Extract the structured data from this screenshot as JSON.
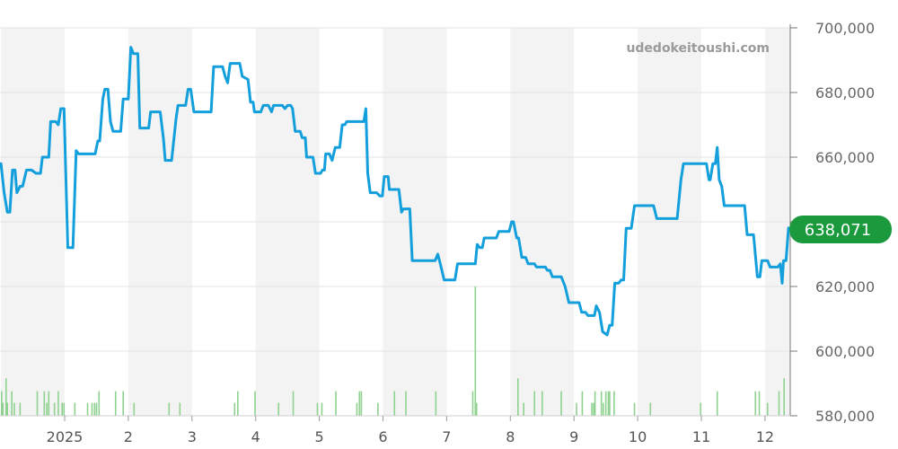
{
  "watermark": "udedokeitoushi.com",
  "current_value_label": "638,071",
  "colors": {
    "line": "#139fdb",
    "volume": "#8fd18f",
    "badge": "#1a9a3c",
    "band": "#f3f3f3",
    "grid": "#e3e3e3"
  },
  "chart_data": {
    "type": "line",
    "title": "",
    "xlabel": "",
    "ylabel": "",
    "ylim": [
      580000,
      700000
    ],
    "xlim": [
      -1.0,
      11.4
    ],
    "y_ticks": [
      {
        "value": 700000,
        "label": "700,000"
      },
      {
        "value": 680000,
        "label": "680,000"
      },
      {
        "value": 660000,
        "label": "660,000"
      },
      {
        "value": 640000,
        "label": "640,000"
      },
      {
        "value": 620000,
        "label": "620,000"
      },
      {
        "value": 600000,
        "label": "600,000"
      },
      {
        "value": 580000,
        "label": "580,000"
      }
    ],
    "x_ticks": [
      {
        "value": 0,
        "label": "2025"
      },
      {
        "value": 1,
        "label": "2"
      },
      {
        "value": 2,
        "label": "3"
      },
      {
        "value": 3,
        "label": "4"
      },
      {
        "value": 4,
        "label": "5"
      },
      {
        "value": 5,
        "label": "6"
      },
      {
        "value": 6,
        "label": "7"
      },
      {
        "value": 7,
        "label": "8"
      },
      {
        "value": 8,
        "label": "9"
      },
      {
        "value": 9,
        "label": "10"
      },
      {
        "value": 10,
        "label": "11"
      },
      {
        "value": 11,
        "label": "12"
      }
    ],
    "shaded_months": [
      -1,
      1,
      3,
      5,
      7,
      9,
      11
    ],
    "price": [
      [
        -1.0,
        658000
      ],
      [
        -0.95,
        649000
      ],
      [
        -0.9,
        643000
      ],
      [
        -0.86,
        643000
      ],
      [
        -0.82,
        656000
      ],
      [
        -0.78,
        656000
      ],
      [
        -0.75,
        649000
      ],
      [
        -0.7,
        651000
      ],
      [
        -0.66,
        651000
      ],
      [
        -0.6,
        656000
      ],
      [
        -0.52,
        656000
      ],
      [
        -0.45,
        655000
      ],
      [
        -0.38,
        655000
      ],
      [
        -0.35,
        660000
      ],
      [
        -0.25,
        660000
      ],
      [
        -0.22,
        671000
      ],
      [
        -0.14,
        671000
      ],
      [
        -0.1,
        670000
      ],
      [
        -0.06,
        675000
      ],
      [
        -0.01,
        675000
      ],
      [
        0.05,
        632000
      ],
      [
        0.13,
        632000
      ],
      [
        0.18,
        662000
      ],
      [
        0.22,
        661000
      ],
      [
        0.48,
        661000
      ],
      [
        0.52,
        665000
      ],
      [
        0.55,
        665000
      ],
      [
        0.6,
        678000
      ],
      [
        0.63,
        681000
      ],
      [
        0.68,
        681000
      ],
      [
        0.72,
        671000
      ],
      [
        0.76,
        668000
      ],
      [
        0.88,
        668000
      ],
      [
        0.92,
        678000
      ],
      [
        1.0,
        678000
      ],
      [
        1.04,
        694000
      ],
      [
        1.08,
        692000
      ],
      [
        1.15,
        692000
      ],
      [
        1.18,
        669000
      ],
      [
        1.32,
        669000
      ],
      [
        1.35,
        674000
      ],
      [
        1.5,
        674000
      ],
      [
        1.55,
        666000
      ],
      [
        1.58,
        659000
      ],
      [
        1.68,
        659000
      ],
      [
        1.75,
        672000
      ],
      [
        1.78,
        676000
      ],
      [
        1.9,
        676000
      ],
      [
        1.94,
        681000
      ],
      [
        1.98,
        681000
      ],
      [
        2.03,
        674000
      ],
      [
        2.3,
        674000
      ],
      [
        2.34,
        688000
      ],
      [
        2.48,
        688000
      ],
      [
        2.52,
        685000
      ],
      [
        2.56,
        683000
      ],
      [
        2.6,
        689000
      ],
      [
        2.75,
        689000
      ],
      [
        2.79,
        685000
      ],
      [
        2.88,
        684000
      ],
      [
        2.92,
        677000
      ],
      [
        2.96,
        677000
      ],
      [
        2.98,
        674000
      ],
      [
        3.08,
        674000
      ],
      [
        3.12,
        676000
      ],
      [
        3.2,
        676000
      ],
      [
        3.25,
        674000
      ],
      [
        3.28,
        676000
      ],
      [
        3.42,
        676000
      ],
      [
        3.46,
        675000
      ],
      [
        3.5,
        676000
      ],
      [
        3.55,
        676000
      ],
      [
        3.58,
        675000
      ],
      [
        3.62,
        668000
      ],
      [
        3.7,
        668000
      ],
      [
        3.73,
        666000
      ],
      [
        3.78,
        666000
      ],
      [
        3.8,
        660000
      ],
      [
        3.9,
        660000
      ],
      [
        3.94,
        655000
      ],
      [
        4.02,
        655000
      ],
      [
        4.05,
        656000
      ],
      [
        4.08,
        656000
      ],
      [
        4.1,
        661000
      ],
      [
        4.16,
        661000
      ],
      [
        4.2,
        659000
      ],
      [
        4.25,
        663000
      ],
      [
        4.32,
        663000
      ],
      [
        4.36,
        670000
      ],
      [
        4.4,
        670000
      ],
      [
        4.43,
        671000
      ],
      [
        4.7,
        671000
      ],
      [
        4.73,
        675000
      ],
      [
        4.76,
        655000
      ],
      [
        4.8,
        649000
      ],
      [
        4.9,
        649000
      ],
      [
        4.95,
        648000
      ],
      [
        4.99,
        648000
      ],
      [
        5.02,
        654000
      ],
      [
        5.08,
        654000
      ],
      [
        5.1,
        650000
      ],
      [
        5.25,
        650000
      ],
      [
        5.29,
        643000
      ],
      [
        5.32,
        644000
      ],
      [
        5.42,
        644000
      ],
      [
        5.46,
        628000
      ],
      [
        5.82,
        628000
      ],
      [
        5.86,
        630000
      ],
      [
        5.9,
        627000
      ],
      [
        5.96,
        622000
      ],
      [
        6.13,
        622000
      ],
      [
        6.17,
        627000
      ],
      [
        6.45,
        627000
      ],
      [
        6.48,
        633000
      ],
      [
        6.52,
        632000
      ],
      [
        6.56,
        632000
      ],
      [
        6.59,
        635000
      ],
      [
        6.78,
        635000
      ],
      [
        6.82,
        637000
      ],
      [
        6.98,
        637000
      ],
      [
        7.02,
        640000
      ],
      [
        7.05,
        640000
      ],
      [
        7.1,
        635000
      ],
      [
        7.13,
        635000
      ],
      [
        7.18,
        629000
      ],
      [
        7.24,
        629000
      ],
      [
        7.28,
        627000
      ],
      [
        7.38,
        627000
      ],
      [
        7.41,
        626000
      ],
      [
        7.55,
        626000
      ],
      [
        7.58,
        625000
      ],
      [
        7.62,
        625000
      ],
      [
        7.66,
        623000
      ],
      [
        7.8,
        623000
      ],
      [
        7.86,
        620000
      ],
      [
        7.92,
        615000
      ],
      [
        8.08,
        615000
      ],
      [
        8.12,
        612000
      ],
      [
        8.18,
        612000
      ],
      [
        8.22,
        611000
      ],
      [
        8.32,
        611000
      ],
      [
        8.35,
        614000
      ],
      [
        8.4,
        612000
      ],
      [
        8.45,
        606000
      ],
      [
        8.52,
        605000
      ],
      [
        8.56,
        608000
      ],
      [
        8.6,
        608000
      ],
      [
        8.64,
        621000
      ],
      [
        8.7,
        621000
      ],
      [
        8.74,
        622000
      ],
      [
        8.78,
        622000
      ],
      [
        8.82,
        638000
      ],
      [
        8.9,
        638000
      ],
      [
        8.95,
        645000
      ],
      [
        9.25,
        645000
      ],
      [
        9.3,
        641000
      ],
      [
        9.62,
        641000
      ],
      [
        9.68,
        653000
      ],
      [
        9.72,
        658000
      ],
      [
        10.08,
        658000
      ],
      [
        10.12,
        653000
      ],
      [
        10.14,
        653000
      ],
      [
        10.18,
        658000
      ],
      [
        10.22,
        658000
      ],
      [
        10.25,
        663000
      ],
      [
        10.28,
        653000
      ],
      [
        10.32,
        651000
      ],
      [
        10.36,
        645000
      ],
      [
        10.68,
        645000
      ],
      [
        10.72,
        636000
      ],
      [
        10.82,
        636000
      ],
      [
        10.88,
        623000
      ],
      [
        10.92,
        623000
      ],
      [
        10.95,
        628000
      ],
      [
        11.04,
        628000
      ],
      [
        11.08,
        626000
      ],
      [
        11.2,
        626000
      ],
      [
        11.24,
        627000
      ],
      [
        11.27,
        621000
      ],
      [
        11.29,
        628000
      ],
      [
        11.33,
        628000
      ],
      [
        11.37,
        638071
      ]
    ],
    "volume_units": "relative (1.0 = tallest bar)",
    "volume": [
      [
        -0.99,
        0.19
      ],
      [
        -0.97,
        0.1
      ],
      [
        -0.92,
        0.29
      ],
      [
        -0.9,
        0.1
      ],
      [
        -0.83,
        0.19
      ],
      [
        -0.79,
        0.1
      ],
      [
        -0.7,
        0.1
      ],
      [
        -0.43,
        0.19
      ],
      [
        -0.32,
        0.19
      ],
      [
        -0.28,
        0.1
      ],
      [
        -0.25,
        0.19
      ],
      [
        -0.16,
        0.1
      ],
      [
        -0.1,
        0.19
      ],
      [
        -0.04,
        0.1
      ],
      [
        -0.01,
        0.1
      ],
      [
        0.16,
        0.1
      ],
      [
        0.36,
        0.1
      ],
      [
        0.43,
        0.1
      ],
      [
        0.47,
        0.1
      ],
      [
        0.5,
        0.1
      ],
      [
        0.54,
        0.19
      ],
      [
        0.8,
        0.19
      ],
      [
        0.92,
        0.19
      ],
      [
        1.09,
        0.1
      ],
      [
        1.64,
        0.1
      ],
      [
        1.81,
        0.1
      ],
      [
        2.67,
        0.1
      ],
      [
        2.72,
        0.19
      ],
      [
        2.99,
        0.19
      ],
      [
        3.36,
        0.1
      ],
      [
        3.59,
        0.19
      ],
      [
        3.97,
        0.1
      ],
      [
        4.04,
        0.1
      ],
      [
        4.26,
        0.19
      ],
      [
        4.59,
        0.1
      ],
      [
        4.63,
        0.19
      ],
      [
        4.66,
        0.19
      ],
      [
        4.92,
        0.1
      ],
      [
        5.18,
        0.19
      ],
      [
        5.36,
        0.19
      ],
      [
        5.83,
        0.19
      ],
      [
        6.41,
        0.19
      ],
      [
        6.45,
        1.0
      ],
      [
        6.47,
        0.1
      ],
      [
        7.12,
        0.29
      ],
      [
        7.21,
        0.1
      ],
      [
        7.38,
        0.19
      ],
      [
        7.5,
        0.19
      ],
      [
        7.8,
        0.19
      ],
      [
        8.04,
        0.1
      ],
      [
        8.13,
        0.19
      ],
      [
        8.28,
        0.1
      ],
      [
        8.31,
        0.1
      ],
      [
        8.33,
        0.19
      ],
      [
        8.43,
        0.19
      ],
      [
        8.46,
        0.1
      ],
      [
        8.5,
        0.19
      ],
      [
        8.54,
        0.19
      ],
      [
        8.56,
        0.19
      ],
      [
        8.63,
        0.19
      ],
      [
        8.95,
        0.1
      ],
      [
        9.2,
        0.1
      ],
      [
        9.99,
        0.1
      ],
      [
        10.25,
        0.19
      ],
      [
        10.85,
        0.19
      ],
      [
        10.91,
        0.19
      ],
      [
        11.04,
        0.1
      ],
      [
        11.22,
        0.19
      ],
      [
        11.3,
        0.29
      ]
    ]
  }
}
